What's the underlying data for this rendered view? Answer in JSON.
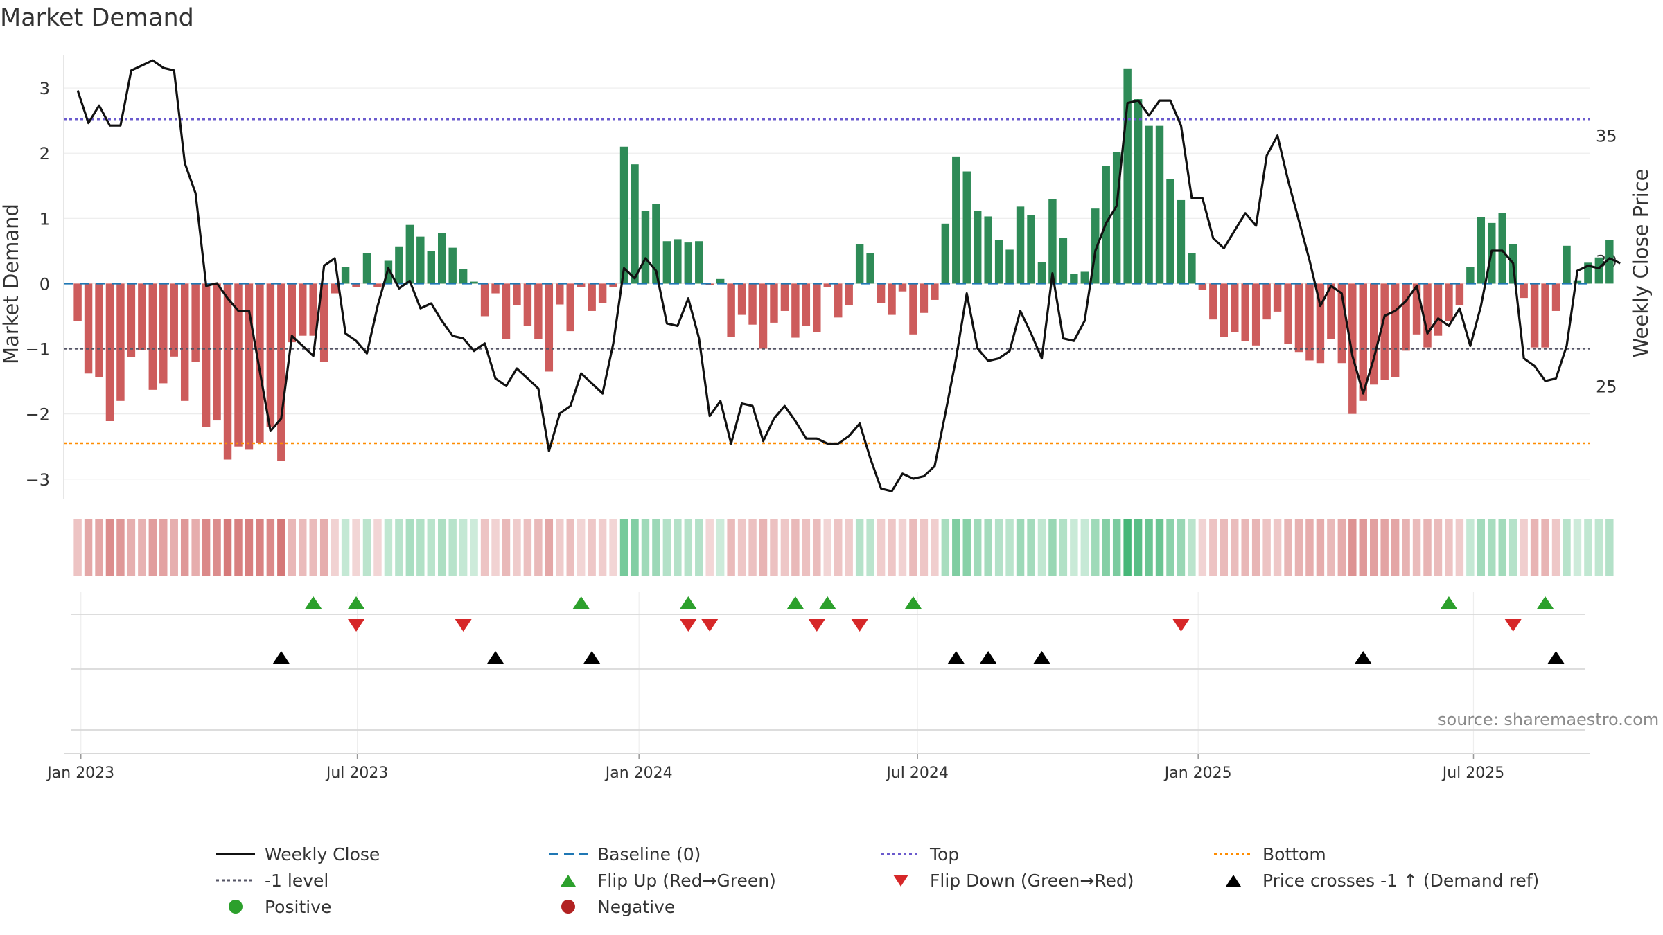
{
  "chart_data": {
    "type": "bar",
    "title": "Market Demand",
    "ylabel": "Market Demand",
    "y2label": "Weekly Close Price",
    "ylim": [
      -3.3,
      3.5
    ],
    "y2lim": [
      20.5,
      38.2
    ],
    "yticks": [
      3,
      2,
      1,
      0,
      -1,
      -2,
      -3
    ],
    "y2ticks": [
      35,
      30,
      25
    ],
    "xrange_weeks": [
      -1.3,
      141.2
    ],
    "xticks": [
      {
        "label": "Jan 2023",
        "week": 0.3
      },
      {
        "label": "Jul 2023",
        "week": 26.1
      },
      {
        "label": "Jan 2024",
        "week": 52.4
      },
      {
        "label": "Jul 2024",
        "week": 78.4
      },
      {
        "label": "Jan 2025",
        "week": 104.6
      },
      {
        "label": "Jul 2025",
        "week": 130.3
      }
    ],
    "reference_lines": {
      "top": 2.52,
      "minus_one": -1.0,
      "bottom": -2.45,
      "baseline": 0
    },
    "demand": [
      -0.57,
      -1.38,
      -1.43,
      -2.11,
      -1.8,
      -1.13,
      -1.02,
      -1.63,
      -1.53,
      -1.12,
      -1.8,
      -1.2,
      -2.2,
      -2.1,
      -2.7,
      -2.5,
      -2.55,
      -2.45,
      -2.2,
      -2.72,
      -0.9,
      -0.8,
      -0.8,
      -1.2,
      -0.15,
      0.25,
      -0.05,
      0.47,
      -0.05,
      0.35,
      0.57,
      0.9,
      0.72,
      0.5,
      0.78,
      0.55,
      0.22,
      0.03,
      -0.5,
      -0.15,
      -0.85,
      -0.33,
      -0.65,
      -0.85,
      -1.35,
      -0.32,
      -0.73,
      -0.05,
      -0.42,
      -0.3,
      -0.05,
      2.1,
      1.83,
      1.12,
      1.22,
      0.65,
      0.68,
      0.63,
      0.65,
      -0.02,
      0.07,
      -0.82,
      -0.48,
      -0.63,
      -1.0,
      -0.6,
      -0.42,
      -0.83,
      -0.65,
      -0.75,
      -0.05,
      -0.52,
      -0.33,
      0.6,
      0.47,
      -0.3,
      -0.48,
      -0.12,
      -0.78,
      -0.45,
      -0.25,
      0.92,
      1.95,
      1.72,
      1.12,
      1.03,
      0.67,
      0.52,
      1.18,
      1.05,
      0.33,
      1.3,
      0.7,
      0.15,
      0.18,
      1.15,
      1.8,
      2.02,
      3.3,
      2.83,
      2.42,
      2.42,
      1.6,
      1.28,
      0.47,
      -0.1,
      -0.55,
      -0.82,
      -0.75,
      -0.88,
      -0.95,
      -0.55,
      -0.43,
      -0.92,
      -1.05,
      -1.18,
      -1.22,
      -0.85,
      -1.22,
      -2.0,
      -1.8,
      -1.55,
      -1.48,
      -1.43,
      -1.03,
      -0.78,
      -0.98,
      -0.8,
      -0.58,
      -0.33,
      0.25,
      1.02,
      0.93,
      1.08,
      0.6,
      -0.22,
      -0.98,
      -0.98,
      -0.42,
      0.58,
      0.05,
      0.32,
      0.4,
      0.67
    ],
    "weekly_close": [
      36.8,
      35.5,
      36.2,
      35.4,
      35.4,
      37.6,
      37.8,
      38.0,
      37.7,
      37.6,
      33.9,
      32.7,
      29.0,
      29.1,
      28.5,
      28.0,
      28.0,
      25.6,
      23.2,
      23.7,
      27.0,
      26.6,
      26.2,
      29.8,
      30.1,
      27.1,
      26.8,
      26.3,
      28.2,
      29.7,
      28.9,
      29.2,
      28.1,
      28.3,
      27.6,
      27.0,
      26.9,
      26.4,
      26.7,
      25.3,
      25.0,
      25.7,
      25.3,
      24.9,
      22.4,
      23.9,
      24.2,
      25.5,
      25.1,
      24.7,
      26.7,
      29.7,
      29.3,
      30.1,
      29.6,
      27.5,
      27.4,
      28.5,
      26.9,
      23.8,
      24.4,
      22.7,
      24.3,
      24.2,
      22.8,
      23.7,
      24.2,
      23.6,
      22.9,
      22.9,
      22.7,
      22.7,
      23.0,
      23.5,
      22.1,
      20.9,
      20.8,
      21.5,
      21.3,
      21.4,
      21.8,
      23.9,
      26.1,
      28.7,
      26.5,
      26.0,
      26.1,
      26.4,
      28.0,
      27.1,
      26.1,
      29.5,
      26.9,
      26.8,
      27.6,
      30.4,
      31.5,
      32.2,
      36.3,
      36.4,
      35.8,
      36.4,
      36.4,
      35.4,
      32.5,
      32.5,
      30.9,
      30.5,
      31.2,
      31.9,
      31.4,
      34.2,
      35.0,
      33.2,
      31.6,
      30.0,
      28.2,
      29.0,
      28.7,
      26.2,
      24.7,
      26.1,
      27.8,
      28.0,
      28.4,
      29.0,
      27.1,
      27.7,
      27.4,
      28.1,
      26.6,
      28.2,
      30.4,
      30.4,
      29.9,
      26.1,
      25.8,
      25.2,
      25.3,
      26.6,
      29.6,
      29.8,
      29.7,
      30.1,
      29.9
    ],
    "flip_up_weeks": [
      22,
      26,
      47,
      57,
      67,
      70,
      78,
      128,
      137
    ],
    "flip_down_weeks": [
      26,
      36,
      57,
      59,
      69,
      73,
      103,
      134
    ],
    "price_cross_weeks": [
      19,
      39,
      48,
      82,
      85,
      90,
      120,
      138
    ],
    "colors": {
      "positive": "#2e8b57",
      "negative": "#cd5c5c",
      "weekly_close": "#111111",
      "baseline": "#1f77b4",
      "top": "#6a5acd",
      "minus_one": "#555566",
      "bottom": "#ff8c00",
      "flip_up": "#2ca02c",
      "flip_down": "#d62728",
      "price_cross": "#000000",
      "positive_dot": "#2ca02c",
      "negative_dot": "#b22222"
    },
    "legend": [
      {
        "label": "Weekly Close",
        "symbol": "solid-line",
        "color": "#111111"
      },
      {
        "label": "Baseline (0)",
        "symbol": "dashed-line",
        "color": "#1f77b4"
      },
      {
        "label": "Top",
        "symbol": "dotted-line",
        "color": "#6a5acd"
      },
      {
        "label": "Bottom",
        "symbol": "dotted-line",
        "color": "#ff8c00"
      },
      {
        "label": "-1 level",
        "symbol": "dotted-line",
        "color": "#555566"
      },
      {
        "label": "Flip Up (Red→Green)",
        "symbol": "triangle-up",
        "color": "#2ca02c"
      },
      {
        "label": "Flip Down (Green→Red)",
        "symbol": "triangle-down",
        "color": "#d62728"
      },
      {
        "label": "Price crosses -1 ↑ (Demand ref)",
        "symbol": "triangle-up",
        "color": "#000000"
      },
      {
        "label": "Positive",
        "symbol": "dot",
        "color": "#2ca02c"
      },
      {
        "label": "Negative",
        "symbol": "dot",
        "color": "#b22222"
      }
    ],
    "source": "source: sharemaestro.com"
  }
}
